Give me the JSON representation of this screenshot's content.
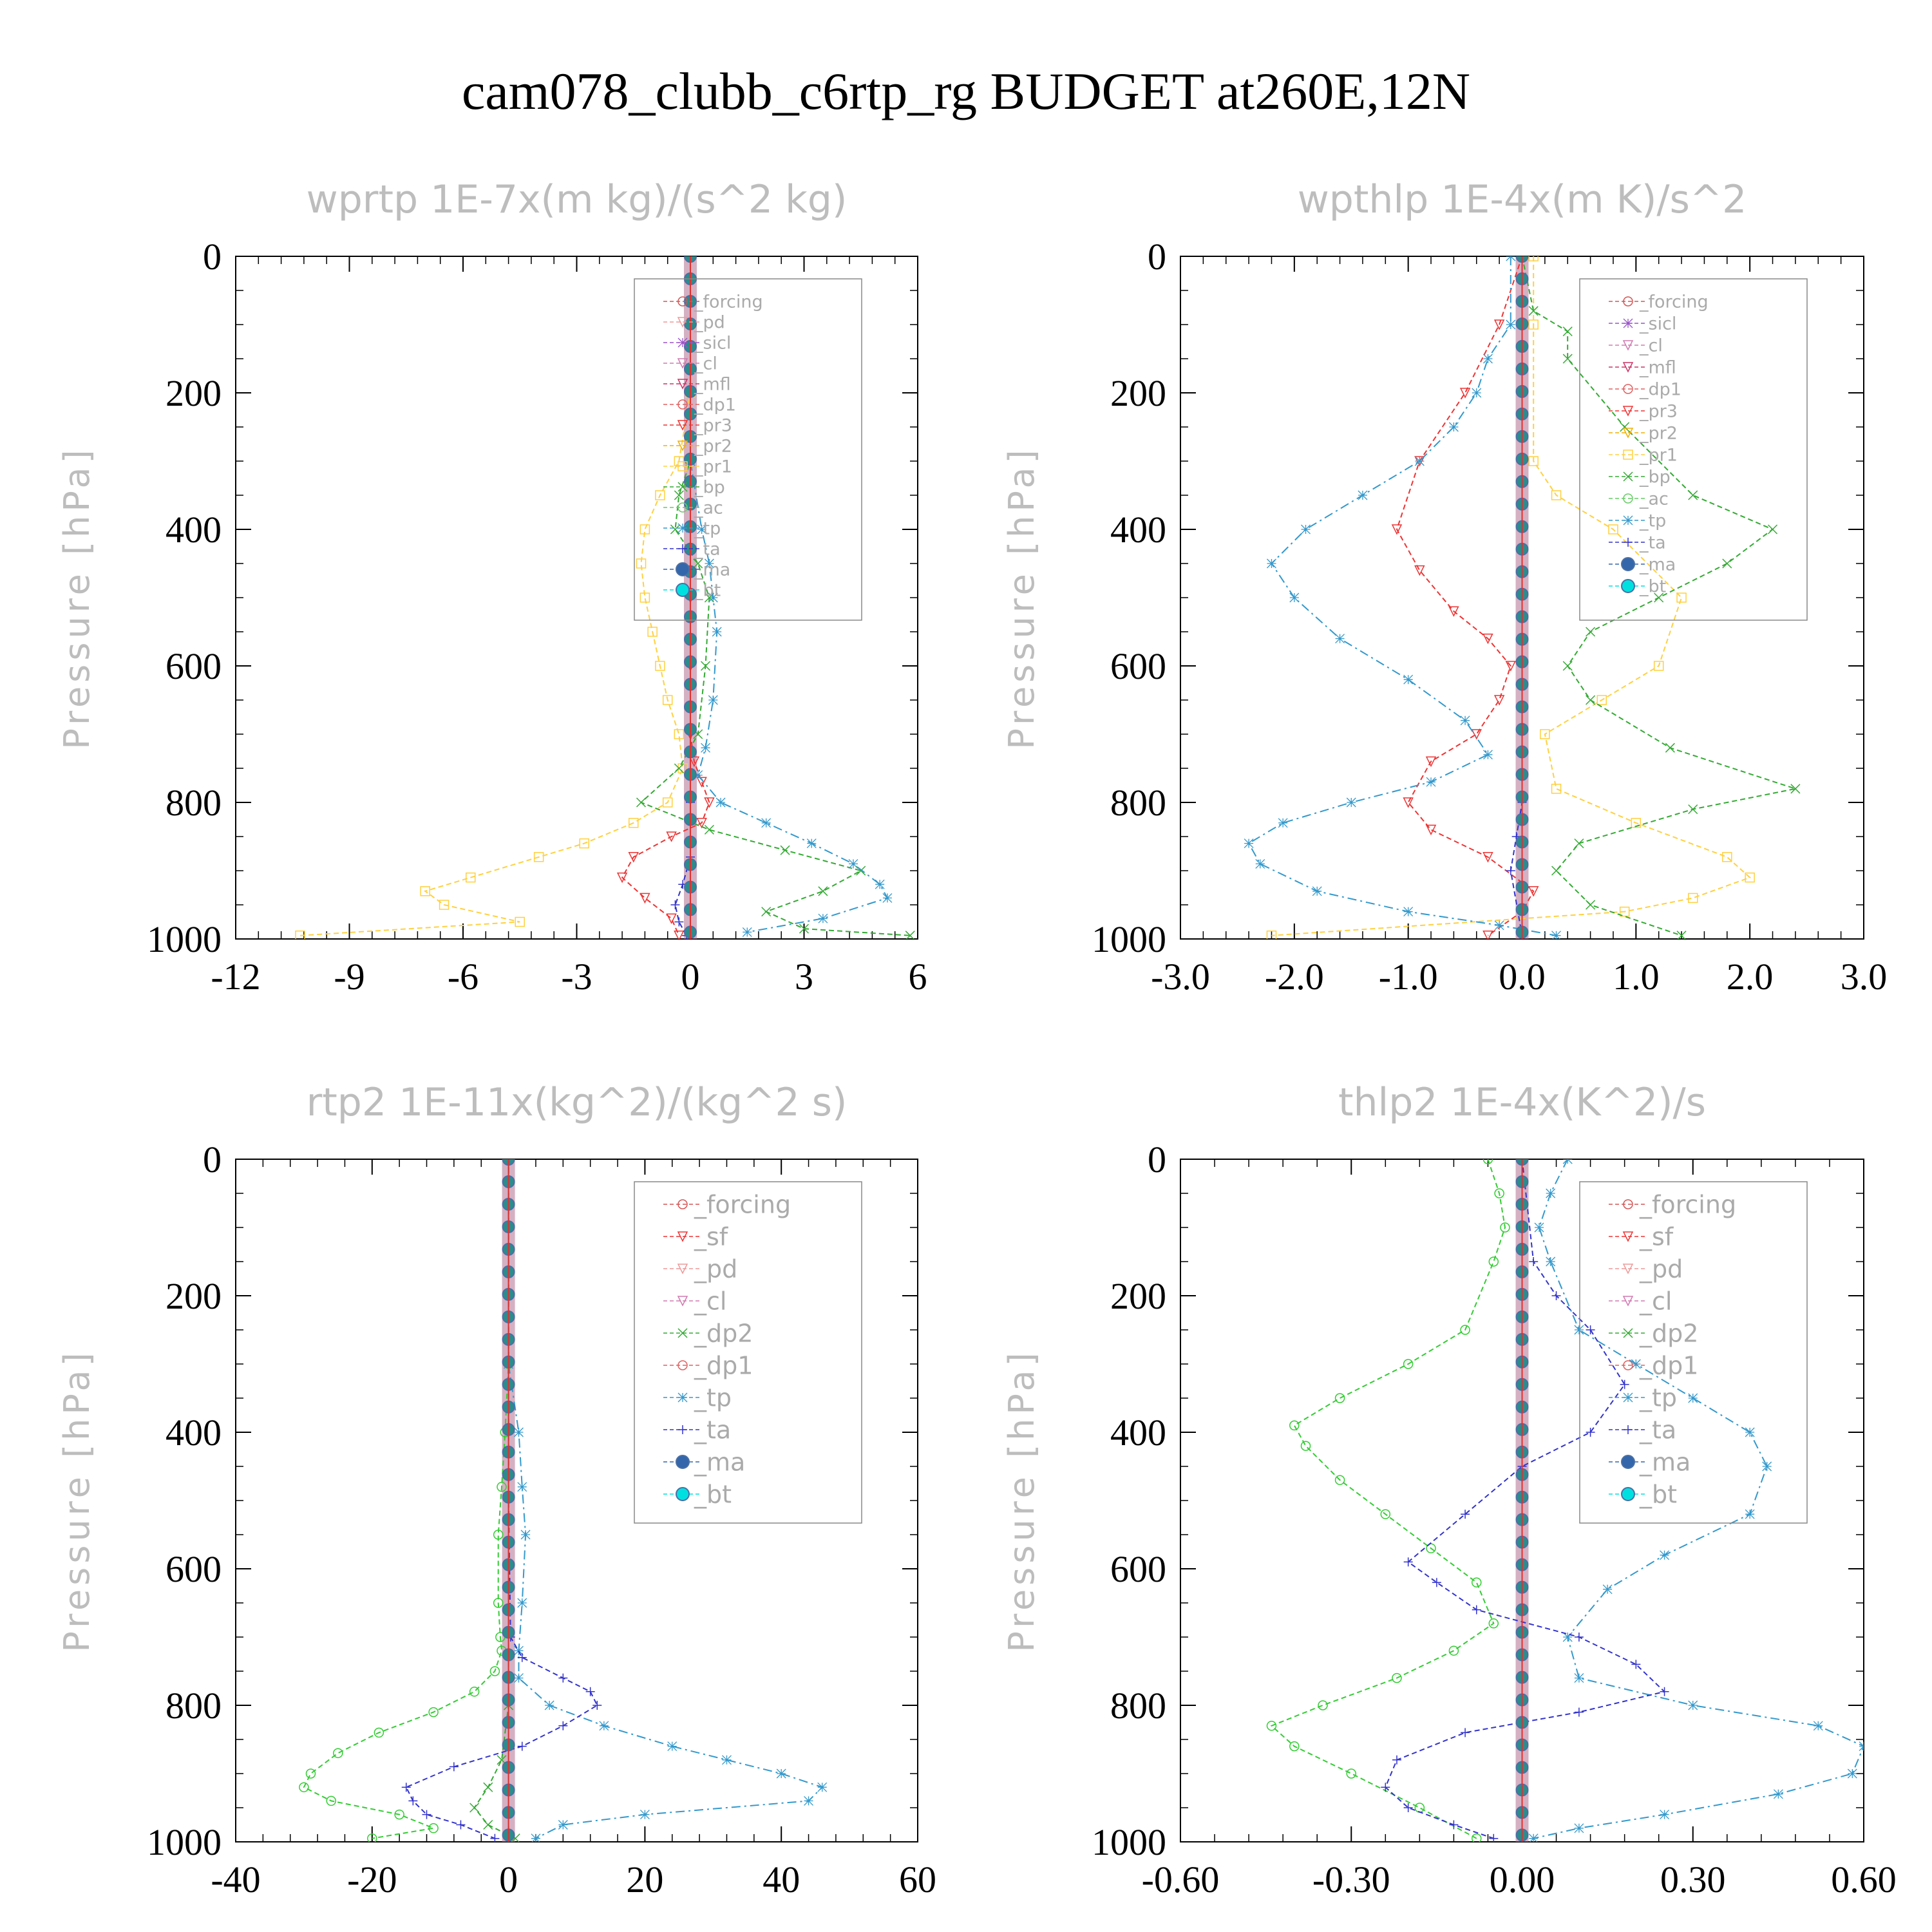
{
  "figure_title": "cam078_clubb_c6rtp_rg  BUDGET at260E,12N",
  "colors": {
    "_forcing": "#d45555",
    "_pd": "#ee9999",
    "_sicl": "#9a52c8",
    "_cl": "#d07ab0",
    "_mfl": "#cc3366",
    "_dp1": "#e06060",
    "_pr3": "#ee3333",
    "_pr2": "#f0b000",
    "_pr1": "#ffd040",
    "_bp": "#33aa33",
    "_ac": "#66cc66",
    "_tp": "#3399cc",
    "_ta": "#3333cc",
    "_ma": "#3366aa",
    "_bt": "#00e0e0",
    "_sf": "#ee3333",
    "_dp2": "#33aa33",
    "_dp1g": "#33cc33"
  },
  "chart_data": [
    {
      "type": "line",
      "title": "wprtp   1E-7x(m kg)/(s^2 kg)",
      "ylabel": "Pressure [hPa]",
      "xlim": [
        -12,
        6
      ],
      "xticks": [
        -12,
        -9,
        -6,
        -3,
        0,
        3,
        6
      ],
      "xtick_labels": [
        "-12",
        "-9",
        "-6",
        "-3",
        "0",
        "3",
        "6"
      ],
      "ylim": [
        0,
        1000
      ],
      "yticks": [
        0,
        200,
        400,
        600,
        800,
        1000
      ],
      "ytick_labels": [
        "0",
        "200",
        "400",
        "600",
        "800",
        "1000"
      ],
      "legend": [
        "_forcing",
        "_pd",
        "_sicl",
        "_cl",
        "_mfl",
        "_dp1",
        "_pr3",
        "_pr2",
        "_pr1",
        "_bp",
        "_ac",
        "_tp",
        "_ta",
        "_ma",
        "_bt"
      ],
      "series": [
        {
          "name": "_pr1",
          "color": "#ffd040",
          "marker": "square",
          "x": [
            0,
            0,
            0,
            -0.3,
            -0.8,
            -1.2,
            -1.3,
            -1.2,
            -1.0,
            -0.8,
            -0.6,
            -0.3,
            -0.2,
            -0.6,
            -1.5,
            -2.8,
            -4.0,
            -5.8,
            -7.0,
            -6.5,
            -4.5,
            -10.3
          ],
          "y": [
            0,
            100,
            200,
            300,
            350,
            400,
            450,
            500,
            550,
            600,
            650,
            700,
            750,
            800,
            830,
            860,
            880,
            910,
            930,
            950,
            975,
            995
          ]
        },
        {
          "name": "_pr3",
          "color": "#ee3333",
          "marker": "triangle",
          "x": [
            0,
            0,
            0,
            0,
            0,
            0.1,
            0.3,
            0.5,
            0.3,
            -0.5,
            -1.5,
            -1.8,
            -1.2,
            -0.5,
            -0.3
          ],
          "y": [
            0,
            200,
            500,
            600,
            700,
            740,
            770,
            800,
            830,
            850,
            880,
            910,
            940,
            970,
            995
          ]
        },
        {
          "name": "_bp",
          "color": "#33aa33",
          "marker": "x",
          "x": [
            0,
            0,
            -0.3,
            -0.4,
            0.2,
            0.5,
            0.4,
            0.2,
            -0.3,
            -1.3,
            0.5,
            2.5,
            4.5,
            3.5,
            2.0,
            3.0,
            5.8
          ],
          "y": [
            0,
            300,
            350,
            400,
            450,
            500,
            600,
            700,
            750,
            800,
            840,
            870,
            900,
            930,
            960,
            985,
            995
          ]
        },
        {
          "name": "_tp",
          "color": "#3399cc",
          "marker": "asterisk",
          "x": [
            0,
            0,
            0.3,
            0.5,
            0.6,
            0.7,
            0.6,
            0.4,
            0.2,
            0.8,
            2.0,
            3.2,
            4.3,
            5.0,
            5.2,
            3.5,
            1.5
          ],
          "y": [
            0,
            300,
            400,
            450,
            500,
            550,
            650,
            720,
            760,
            800,
            830,
            860,
            890,
            920,
            940,
            970,
            990
          ]
        },
        {
          "name": "_ta",
          "color": "#3333cc",
          "marker": "plus",
          "x": [
            0,
            0,
            0,
            0,
            -0.2,
            -0.4,
            -0.3,
            -0.1
          ],
          "y": [
            0,
            600,
            800,
            880,
            920,
            950,
            975,
            995
          ]
        },
        {
          "name": "_bt",
          "color": "#00e0e0",
          "marker": "dot",
          "x": [
            0,
            0,
            0,
            0,
            0,
            0,
            0,
            0,
            0,
            0,
            0
          ],
          "y": [
            0,
            100,
            200,
            300,
            400,
            500,
            600,
            700,
            800,
            900,
            1000
          ]
        }
      ]
    },
    {
      "type": "line",
      "title": "wpthlp   1E-4x(m K)/s^2",
      "ylabel": "Pressure [hPa]",
      "xlim": [
        -3.0,
        3.0
      ],
      "xticks": [
        -3.0,
        -2.0,
        -1.0,
        0.0,
        1.0,
        2.0,
        3.0
      ],
      "xtick_labels": [
        "-3.0",
        "-2.0",
        "-1.0",
        "0.0",
        "1.0",
        "2.0",
        "3.0"
      ],
      "ylim": [
        0,
        1000
      ],
      "yticks": [
        0,
        200,
        400,
        600,
        800,
        1000
      ],
      "ytick_labels": [
        "0",
        "200",
        "400",
        "600",
        "800",
        "1000"
      ],
      "legend": [
        "_forcing",
        "_sicl",
        "_cl",
        "_mfl",
        "_dp1",
        "_pr3",
        "_pr2",
        "_pr1",
        "_bp",
        "_ac",
        "_tp",
        "_ta",
        "_ma",
        "_bt"
      ],
      "series": [
        {
          "name": "_pr1",
          "color": "#ffd040",
          "marker": "square",
          "x": [
            0.1,
            0.1,
            0.1,
            0.3,
            0.8,
            1.4,
            1.2,
            0.7,
            0.2,
            0.3,
            1.0,
            1.8,
            2.0,
            1.5,
            0.9,
            -2.2
          ],
          "y": [
            0,
            100,
            300,
            350,
            400,
            500,
            600,
            650,
            700,
            780,
            830,
            880,
            910,
            940,
            960,
            995
          ]
        },
        {
          "name": "_pr3",
          "color": "#ee3333",
          "marker": "triangle",
          "x": [
            0,
            -0.2,
            -0.5,
            -0.9,
            -1.1,
            -0.9,
            -0.6,
            -0.3,
            -0.1,
            -0.2,
            -0.4,
            -0.8,
            -1.0,
            -0.8,
            -0.3,
            0.1,
            0,
            -0.3
          ],
          "y": [
            0,
            100,
            200,
            300,
            400,
            460,
            520,
            560,
            600,
            650,
            700,
            740,
            800,
            840,
            880,
            930,
            960,
            995
          ]
        },
        {
          "name": "_bp",
          "color": "#33aa33",
          "marker": "x",
          "x": [
            0,
            0.1,
            0.4,
            0.4,
            0.9,
            1.5,
            2.2,
            1.8,
            1.2,
            0.6,
            0.4,
            0.6,
            1.3,
            2.4,
            1.5,
            0.5,
            0.3,
            0.6,
            1.4
          ],
          "y": [
            0,
            80,
            110,
            150,
            250,
            350,
            400,
            450,
            500,
            550,
            600,
            650,
            720,
            780,
            810,
            860,
            900,
            950,
            995
          ]
        },
        {
          "name": "_tp",
          "color": "#3399cc",
          "marker": "asterisk",
          "x": [
            -0.1,
            -0.1,
            -0.3,
            -0.4,
            -0.6,
            -0.9,
            -1.4,
            -1.9,
            -2.2,
            -2.0,
            -1.6,
            -1.0,
            -0.5,
            -0.3,
            -0.8,
            -1.5,
            -2.1,
            -2.4,
            -2.3,
            -1.8,
            -1.0,
            -0.2,
            0.3
          ],
          "y": [
            0,
            100,
            150,
            200,
            250,
            300,
            350,
            400,
            450,
            500,
            560,
            620,
            680,
            730,
            770,
            800,
            830,
            860,
            890,
            930,
            960,
            980,
            995
          ]
        },
        {
          "name": "_ta",
          "color": "#3333cc",
          "marker": "plus",
          "x": [
            0,
            0,
            0,
            -0.05,
            -0.1,
            0
          ],
          "y": [
            0,
            500,
            800,
            850,
            900,
            995
          ]
        },
        {
          "name": "_bt",
          "color": "#00e0e0",
          "marker": "dot",
          "x": [
            0,
            0,
            0,
            0,
            0,
            0,
            0,
            0,
            0,
            0,
            0
          ],
          "y": [
            0,
            100,
            200,
            300,
            400,
            500,
            600,
            700,
            800,
            900,
            1000
          ]
        }
      ]
    },
    {
      "type": "line",
      "title": "rtp2   1E-11x(kg^2)/(kg^2 s)",
      "ylabel": "Pressure [hPa]",
      "xlim": [
        -40,
        60
      ],
      "xticks": [
        -40,
        -20,
        0,
        20,
        40,
        60
      ],
      "xtick_labels": [
        "-40",
        "-20",
        "0",
        "20",
        "40",
        "60"
      ],
      "ylim": [
        0,
        1000
      ],
      "yticks": [
        0,
        200,
        400,
        600,
        800,
        1000
      ],
      "ytick_labels": [
        "0",
        "200",
        "400",
        "600",
        "800",
        "1000"
      ],
      "legend": [
        "_forcing",
        "_sf",
        "_pd",
        "_cl",
        "_dp2",
        "_dp1",
        "_tp",
        "_ta",
        "_ma",
        "_bt"
      ],
      "series": [
        {
          "name": "_dp1",
          "color": "#33cc33",
          "marker": "circle",
          "x": [
            0,
            0,
            -0.5,
            -1.0,
            -1.5,
            -1.5,
            -1.2,
            -1.0,
            -2.0,
            -5.0,
            -11.0,
            -19.0,
            -25.0,
            -29.0,
            -30.0,
            -26.0,
            -16.0,
            -11.0,
            -20.0
          ],
          "y": [
            0,
            300,
            400,
            480,
            550,
            650,
            700,
            720,
            750,
            780,
            810,
            840,
            870,
            900,
            920,
            940,
            960,
            980,
            995
          ]
        },
        {
          "name": "_tp",
          "color": "#3399cc",
          "marker": "asterisk",
          "x": [
            0,
            0,
            1.5,
            2.0,
            2.5,
            2.0,
            1.5,
            1.5,
            6.0,
            14.0,
            24.0,
            32.0,
            40.0,
            46.0,
            44.0,
            20.0,
            8.0,
            4.0
          ],
          "y": [
            0,
            300,
            400,
            480,
            550,
            650,
            720,
            760,
            800,
            830,
            860,
            880,
            900,
            920,
            940,
            960,
            975,
            995
          ]
        },
        {
          "name": "_ta",
          "color": "#3333cc",
          "marker": "plus",
          "x": [
            0,
            0,
            0.3,
            2.0,
            8.0,
            12.0,
            13.0,
            8.0,
            2.0,
            -8.0,
            -15.0,
            -14.0,
            -12.0,
            -7.0,
            -2.0
          ],
          "y": [
            0,
            500,
            700,
            730,
            760,
            780,
            800,
            830,
            860,
            890,
            920,
            940,
            960,
            975,
            995
          ]
        },
        {
          "name": "_dp2",
          "color": "#33aa33",
          "marker": "x",
          "x": [
            0,
            0,
            -1.0,
            -3.0,
            -5.0,
            -3.0,
            1.0
          ],
          "y": [
            0,
            800,
            880,
            920,
            950,
            975,
            995
          ]
        },
        {
          "name": "_bt",
          "color": "#00e0e0",
          "marker": "dot",
          "x": [
            0,
            0,
            0,
            0,
            0,
            0,
            0,
            0,
            0,
            0,
            0
          ],
          "y": [
            0,
            100,
            200,
            300,
            400,
            500,
            600,
            700,
            800,
            900,
            1000
          ]
        }
      ]
    },
    {
      "type": "line",
      "title": "thlp2   1E-4x(K^2)/s",
      "ylabel": "Pressure [hPa]",
      "xlim": [
        -0.6,
        0.6
      ],
      "xticks": [
        -0.6,
        -0.3,
        0.0,
        0.3,
        0.6
      ],
      "xtick_labels": [
        "-0.60",
        "-0.30",
        "0.00",
        "0.30",
        "0.60"
      ],
      "ylim": [
        0,
        1000
      ],
      "yticks": [
        0,
        200,
        400,
        600,
        800,
        1000
      ],
      "ytick_labels": [
        "0",
        "200",
        "400",
        "600",
        "800",
        "1000"
      ],
      "legend": [
        "_forcing",
        "_sf",
        "_pd",
        "_cl",
        "_dp2",
        "_dp1",
        "_tp",
        "_ta",
        "_ma",
        "_bt"
      ],
      "series": [
        {
          "name": "_dp1",
          "color": "#33cc33",
          "marker": "circle",
          "x": [
            -0.06,
            -0.04,
            -0.03,
            -0.05,
            -0.1,
            -0.2,
            -0.32,
            -0.4,
            -0.38,
            -0.32,
            -0.24,
            -0.16,
            -0.08,
            -0.05,
            -0.12,
            -0.22,
            -0.35,
            -0.44,
            -0.4,
            -0.3,
            -0.18,
            -0.08
          ],
          "y": [
            0,
            50,
            100,
            150,
            250,
            300,
            350,
            390,
            420,
            470,
            520,
            570,
            620,
            680,
            720,
            760,
            800,
            830,
            860,
            900,
            950,
            995
          ]
        },
        {
          "name": "_tp",
          "color": "#3399cc",
          "marker": "asterisk",
          "x": [
            0.08,
            0.05,
            0.03,
            0.05,
            0.1,
            0.2,
            0.3,
            0.4,
            0.43,
            0.4,
            0.25,
            0.15,
            0.08,
            0.1,
            0.3,
            0.52,
            0.6,
            0.58,
            0.45,
            0.25,
            0.1,
            0.02
          ],
          "y": [
            0,
            50,
            100,
            150,
            250,
            300,
            350,
            400,
            450,
            520,
            580,
            630,
            700,
            760,
            800,
            830,
            860,
            900,
            930,
            960,
            980,
            995
          ]
        },
        {
          "name": "_ta",
          "color": "#3333cc",
          "marker": "plus",
          "x": [
            0,
            0.02,
            0.06,
            0.12,
            0.18,
            0.12,
            0.0,
            -0.1,
            -0.2,
            -0.15,
            -0.08,
            0.1,
            0.2,
            0.25,
            0.1,
            -0.1,
            -0.22,
            -0.24,
            -0.2,
            -0.12,
            -0.05
          ],
          "y": [
            0,
            150,
            200,
            250,
            330,
            400,
            450,
            520,
            590,
            620,
            660,
            700,
            740,
            780,
            810,
            840,
            880,
            920,
            950,
            975,
            995
          ]
        },
        {
          "name": "_bt",
          "color": "#00e0e0",
          "marker": "dot",
          "x": [
            0,
            0,
            0,
            0,
            0,
            0,
            0,
            0,
            0,
            0,
            0
          ],
          "y": [
            0,
            100,
            200,
            300,
            400,
            500,
            600,
            700,
            800,
            900,
            1000
          ]
        }
      ]
    }
  ]
}
